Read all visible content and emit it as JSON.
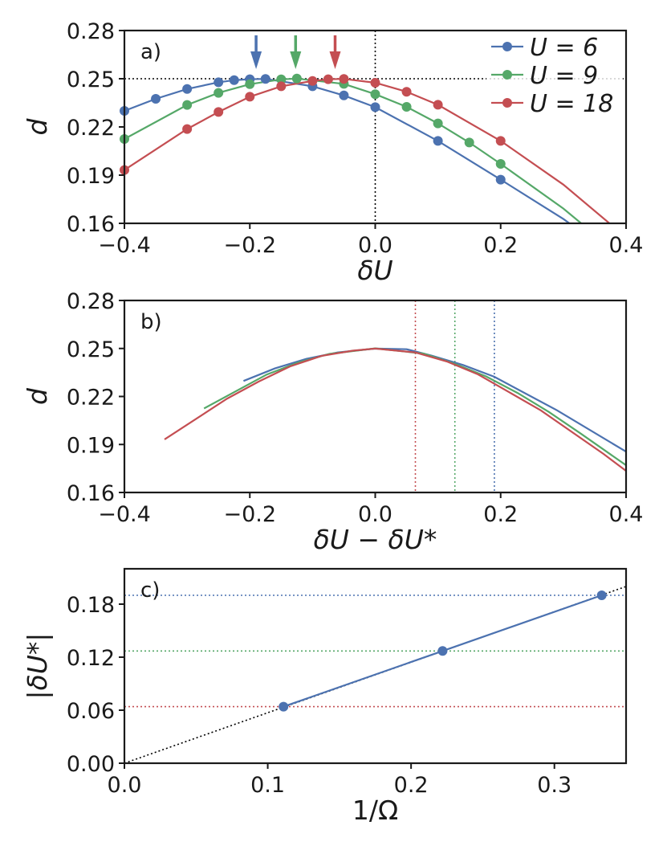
{
  "colors": {
    "U6": "#4c72b0",
    "U9": "#55a868",
    "U18": "#c44e52",
    "axis": "#1a1a1a",
    "reference": "#000000"
  },
  "chart_data": [
    {
      "panel": "a)",
      "type": "line",
      "xlabel": "δU",
      "ylabel": "d",
      "xlim": [
        -0.4,
        0.4
      ],
      "ylim": [
        0.16,
        0.28
      ],
      "xticks": [
        "−0.4",
        "−0.2",
        "0.0",
        "0.2",
        "0.4"
      ],
      "yticks": [
        "0.16",
        "0.19",
        "0.22",
        "0.25",
        "0.28"
      ],
      "legend_position": "top-right",
      "reference_lines": {
        "horizontal_y": 0.25,
        "vertical_x": 0.0,
        "style": "dotted"
      },
      "arrows_at_x": [
        -0.19,
        -0.127,
        -0.064
      ],
      "series": [
        {
          "name": "U = 6",
          "color_key": "U6",
          "points": [
            [
              -0.4,
              0.23
            ],
            [
              -0.35,
              0.2375
            ],
            [
              -0.3,
              0.2436
            ],
            [
              -0.25,
              0.2478
            ],
            [
              -0.225,
              0.2491
            ],
            [
              -0.2,
              0.2497
            ],
            [
              -0.175,
              0.2499
            ],
            [
              -0.1,
              0.2453
            ],
            [
              -0.05,
              0.2396
            ],
            [
              0.0,
              0.2323
            ],
            [
              0.1,
              0.2113
            ],
            [
              0.2,
              0.1872
            ],
            [
              0.3,
              0.1627
            ],
            [
              0.315,
              0.1585
            ]
          ]
        },
        {
          "name": "U = 9",
          "color_key": "U9",
          "points": [
            [
              -0.4,
              0.2125
            ],
            [
              -0.3,
              0.2337
            ],
            [
              -0.25,
              0.2412
            ],
            [
              -0.2,
              0.2466
            ],
            [
              -0.15,
              0.2496
            ],
            [
              -0.125,
              0.2501
            ],
            [
              -0.05,
              0.2468
            ],
            [
              0.0,
              0.2404
            ],
            [
              0.05,
              0.2325
            ],
            [
              0.1,
              0.2222
            ],
            [
              0.15,
              0.2103
            ],
            [
              0.2,
              0.197
            ],
            [
              0.3,
              0.1692
            ],
            [
              0.33,
              0.1595
            ]
          ]
        },
        {
          "name": "U = 18",
          "color_key": "U18",
          "points": [
            [
              -0.4,
              0.1932
            ],
            [
              -0.3,
              0.2187
            ],
            [
              -0.25,
              0.2293
            ],
            [
              -0.2,
              0.2388
            ],
            [
              -0.15,
              0.2453
            ],
            [
              -0.1,
              0.2486
            ],
            [
              -0.075,
              0.2497
            ],
            [
              -0.05,
              0.2499
            ],
            [
              0.0,
              0.2475
            ],
            [
              0.05,
              0.2419
            ],
            [
              0.1,
              0.2338
            ],
            [
              0.2,
              0.2113
            ],
            [
              0.3,
              0.1841
            ],
            [
              0.375,
              0.1595
            ]
          ]
        }
      ]
    },
    {
      "panel": "b)",
      "type": "line",
      "xlabel": "δU − δU*",
      "ylabel": "d",
      "xlim": [
        -0.4,
        0.4
      ],
      "ylim": [
        0.16,
        0.28
      ],
      "xticks": [
        "−0.4",
        "−0.2",
        "0.0",
        "0.2",
        "0.4"
      ],
      "yticks": [
        "0.16",
        "0.19",
        "0.22",
        "0.25",
        "0.28"
      ],
      "vertical_lines": [
        {
          "x": 0.064,
          "color_key": "U18"
        },
        {
          "x": 0.127,
          "color_key": "U9"
        },
        {
          "x": 0.19,
          "color_key": "U6"
        }
      ],
      "series": [
        {
          "name": "U = 6",
          "color_key": "U6",
          "points": [
            [
              -0.21,
              0.2297
            ],
            [
              -0.16,
              0.2375
            ],
            [
              -0.11,
              0.2435
            ],
            [
              -0.06,
              0.2475
            ],
            [
              0.0,
              0.2499
            ],
            [
              0.05,
              0.2495
            ],
            [
              0.09,
              0.2455
            ],
            [
              0.14,
              0.2397
            ],
            [
              0.19,
              0.2323
            ],
            [
              0.29,
              0.2113
            ],
            [
              0.4,
              0.1855
            ]
          ]
        },
        {
          "name": "U = 9",
          "color_key": "U9",
          "points": [
            [
              -0.273,
              0.2125
            ],
            [
              -0.173,
              0.2337
            ],
            [
              -0.123,
              0.2412
            ],
            [
              -0.073,
              0.2466
            ],
            [
              0.0,
              0.2501
            ],
            [
              0.077,
              0.2468
            ],
            [
              0.127,
              0.2404
            ],
            [
              0.177,
              0.2325
            ],
            [
              0.227,
              0.2222
            ],
            [
              0.277,
              0.2103
            ],
            [
              0.327,
              0.197
            ],
            [
              0.4,
              0.177
            ]
          ]
        },
        {
          "name": "U = 18",
          "color_key": "U18",
          "points": [
            [
              -0.336,
              0.1932
            ],
            [
              -0.236,
              0.2187
            ],
            [
              -0.186,
              0.2293
            ],
            [
              -0.136,
              0.2388
            ],
            [
              -0.086,
              0.2453
            ],
            [
              -0.036,
              0.2486
            ],
            [
              0.0,
              0.2499
            ],
            [
              0.064,
              0.2475
            ],
            [
              0.114,
              0.2419
            ],
            [
              0.164,
              0.2338
            ],
            [
              0.264,
              0.2113
            ],
            [
              0.364,
              0.1841
            ],
            [
              0.4,
              0.1735
            ]
          ]
        }
      ]
    },
    {
      "panel": "c)",
      "type": "scatter",
      "xlabel": "1/Ω",
      "ylabel": "|δU*|",
      "xlim": [
        0.0,
        0.35
      ],
      "ylim": [
        0.0,
        0.22
      ],
      "xticks": [
        "0.0",
        "0.1",
        "0.2",
        "0.3"
      ],
      "yticks": [
        "0.00",
        "0.06",
        "0.12",
        "0.18"
      ],
      "reference_line": {
        "from": [
          0.0,
          0.0
        ],
        "to": [
          0.35,
          0.2
        ],
        "style": "dotted"
      },
      "horizontal_lines": [
        {
          "y": 0.064,
          "color_key": "U18"
        },
        {
          "y": 0.127,
          "color_key": "U9"
        },
        {
          "y": 0.19,
          "color_key": "U6"
        }
      ],
      "series": [
        {
          "name": "",
          "color_key": "U6",
          "points": [
            [
              0.111,
              0.064
            ],
            [
              0.222,
              0.127
            ],
            [
              0.333,
              0.19
            ]
          ]
        }
      ]
    }
  ]
}
